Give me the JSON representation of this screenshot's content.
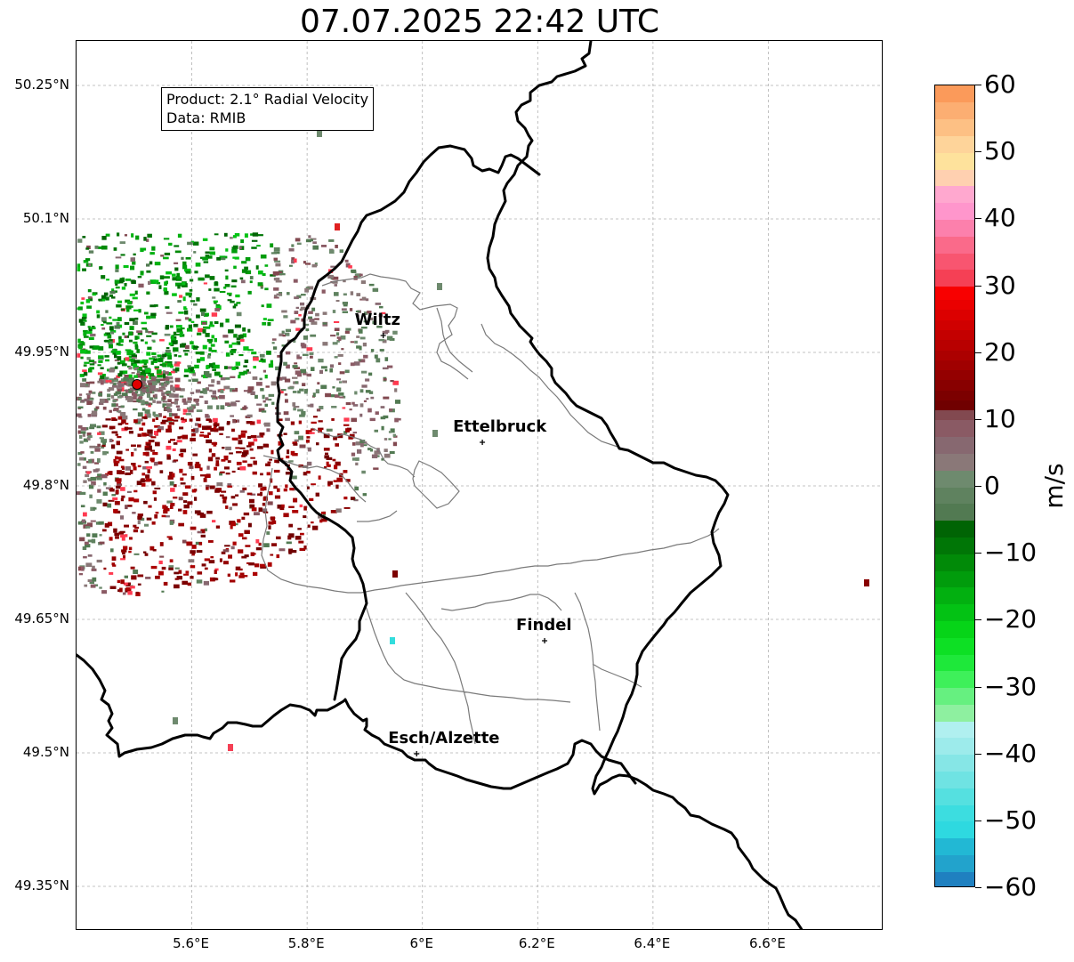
{
  "title": "07.07.2025 22:42 UTC",
  "info": {
    "product": "Product: 2.1° Radial Velocity",
    "data": "Data: RMIB"
  },
  "map": {
    "lon_range": [
      5.4,
      6.8
    ],
    "lat_range": [
      49.3,
      50.3
    ],
    "lat_labels": [
      "50.25°N",
      "50.1°N",
      "49.95°N",
      "49.8°N",
      "49.65°N",
      "49.5°N",
      "49.35°N"
    ],
    "lon_labels": [
      "5.6°E",
      "5.8°E",
      "6°E",
      "6.2°E",
      "6.4°E",
      "6.6°E"
    ],
    "radar_site": {
      "lon": 5.505,
      "lat": 49.914
    },
    "cities": [
      {
        "name": "Wiltz",
        "lon": 5.932,
        "lat": 49.969
      },
      {
        "name": "Ettelbruck",
        "lon": 6.104,
        "lat": 49.849
      },
      {
        "name": "Findel",
        "lon": 6.212,
        "lat": 49.626
      },
      {
        "name": "Esch/Alzette",
        "lon": 5.99,
        "lat": 49.499
      }
    ],
    "colors": {
      "country_border": "#000000",
      "canton_border": "#7a7a7a",
      "gridline": "#b0b0b0",
      "radar_marker": "#e00000"
    }
  },
  "colorbar": {
    "unit": "m/s",
    "range": [
      -60,
      60
    ],
    "ticks": [
      {
        "value": 60,
        "label": "60"
      },
      {
        "value": 50,
        "label": "50"
      },
      {
        "value": 40,
        "label": "40"
      },
      {
        "value": 30,
        "label": "30"
      },
      {
        "value": 20,
        "label": "20"
      },
      {
        "value": 10,
        "label": "10"
      },
      {
        "value": 0,
        "label": "0"
      },
      {
        "value": -10,
        "label": "−10"
      },
      {
        "value": -20,
        "label": "−20"
      },
      {
        "value": -30,
        "label": "−30"
      },
      {
        "value": -40,
        "label": "−40"
      },
      {
        "value": -50,
        "label": "−50"
      },
      {
        "value": -60,
        "label": "−60"
      }
    ],
    "segments": [
      {
        "from": -60,
        "to": -57.5,
        "color": "#1f80c0"
      },
      {
        "from": -57.5,
        "to": -55,
        "color": "#22a3cc"
      },
      {
        "from": -55,
        "to": -52.5,
        "color": "#22b8d4"
      },
      {
        "from": -52.5,
        "to": -50,
        "color": "#2ed9e0"
      },
      {
        "from": -50,
        "to": -47.5,
        "color": "#3cdde0"
      },
      {
        "from": -47.5,
        "to": -45,
        "color": "#55e0e0"
      },
      {
        "from": -45,
        "to": -42.5,
        "color": "#6fe3e3"
      },
      {
        "from": -42.5,
        "to": -40,
        "color": "#86e6e6"
      },
      {
        "from": -40,
        "to": -37.5,
        "color": "#9debeb"
      },
      {
        "from": -37.5,
        "to": -35,
        "color": "#b0f0f0"
      },
      {
        "from": -35,
        "to": -32.5,
        "color": "#8ef0a0"
      },
      {
        "from": -32.5,
        "to": -30,
        "color": "#66f080"
      },
      {
        "from": -30,
        "to": -27.5,
        "color": "#3ef05a"
      },
      {
        "from": -27.5,
        "to": -25,
        "color": "#1ee83a"
      },
      {
        "from": -25,
        "to": -22.5,
        "color": "#0de024"
      },
      {
        "from": -22.5,
        "to": -20,
        "color": "#06d418"
      },
      {
        "from": -20,
        "to": -17.5,
        "color": "#03c214"
      },
      {
        "from": -17.5,
        "to": -15,
        "color": "#02b010"
      },
      {
        "from": -15,
        "to": -12.5,
        "color": "#019c0c"
      },
      {
        "from": -12.5,
        "to": -10,
        "color": "#018a08"
      },
      {
        "from": -10,
        "to": -7.5,
        "color": "#007606"
      },
      {
        "from": -7.5,
        "to": -5,
        "color": "#006404"
      },
      {
        "from": -5,
        "to": -2.5,
        "color": "#527a52"
      },
      {
        "from": -2.5,
        "to": 0,
        "color": "#5f825f"
      },
      {
        "from": 0,
        "to": 2.5,
        "color": "#6e8a6e"
      },
      {
        "from": 2.5,
        "to": 5,
        "color": "#8a7878"
      },
      {
        "from": 5,
        "to": 7.5,
        "color": "#876870"
      },
      {
        "from": 7.5,
        "to": 10,
        "color": "#8a5a64"
      },
      {
        "from": 10,
        "to": 11.5,
        "color": "#824950"
      },
      {
        "from": 11.5,
        "to": 13,
        "color": "#700000"
      },
      {
        "from": 13,
        "to": 14.5,
        "color": "#7c0000"
      },
      {
        "from": 14.5,
        "to": 16,
        "color": "#880000"
      },
      {
        "from": 16,
        "to": 17.5,
        "color": "#940000"
      },
      {
        "from": 17.5,
        "to": 19,
        "color": "#a00000"
      },
      {
        "from": 19,
        "to": 20.5,
        "color": "#ac0000"
      },
      {
        "from": 20.5,
        "to": 22,
        "color": "#b80000"
      },
      {
        "from": 22,
        "to": 23.5,
        "color": "#c40000"
      },
      {
        "from": 23.5,
        "to": 25,
        "color": "#d00000"
      },
      {
        "from": 25,
        "to": 26.5,
        "color": "#dc0000"
      },
      {
        "from": 26.5,
        "to": 28,
        "color": "#ea0000"
      },
      {
        "from": 28,
        "to": 30,
        "color": "#f80000"
      },
      {
        "from": 30,
        "to": 32.5,
        "color": "#f54055"
      },
      {
        "from": 32.5,
        "to": 35,
        "color": "#f85570"
      },
      {
        "from": 35,
        "to": 37.5,
        "color": "#fa6a8a"
      },
      {
        "from": 37.5,
        "to": 40,
        "color": "#fc80ac"
      },
      {
        "from": 40,
        "to": 42.5,
        "color": "#ff96cc"
      },
      {
        "from": 42.5,
        "to": 45,
        "color": "#ffa8cf"
      },
      {
        "from": 45,
        "to": 47.5,
        "color": "#ffd0b0"
      },
      {
        "from": 47.5,
        "to": 50,
        "color": "#fee29c"
      },
      {
        "from": 50,
        "to": 52.5,
        "color": "#fed49a"
      },
      {
        "from": 52.5,
        "to": 55,
        "color": "#fdc084"
      },
      {
        "from": 55,
        "to": 57.5,
        "color": "#fcae72"
      },
      {
        "from": 57.5,
        "to": 60,
        "color": "#fb9a5a"
      }
    ]
  }
}
